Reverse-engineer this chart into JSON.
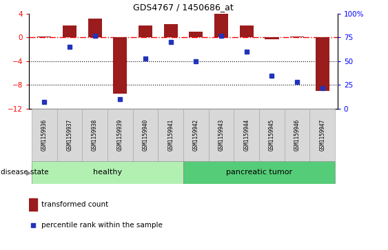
{
  "title": "GDS4767 / 1450686_at",
  "samples": [
    "GSM1159936",
    "GSM1159937",
    "GSM1159938",
    "GSM1159939",
    "GSM1159940",
    "GSM1159941",
    "GSM1159942",
    "GSM1159943",
    "GSM1159944",
    "GSM1159945",
    "GSM1159946",
    "GSM1159947"
  ],
  "transformed_count": [
    0.2,
    2.0,
    3.2,
    -9.5,
    2.0,
    2.2,
    1.0,
    4.0,
    2.0,
    -0.3,
    0.2,
    -9.0
  ],
  "percentile_rank": [
    7,
    65,
    77,
    10,
    53,
    70,
    50,
    77,
    60,
    35,
    28,
    22
  ],
  "bar_color": "#9b1c1c",
  "dot_color": "#2233bb",
  "ylim_left": [
    -12,
    4
  ],
  "ylim_right": [
    0,
    100
  ],
  "yticks_left": [
    4,
    0,
    -4,
    -8,
    -12
  ],
  "yticks_right": [
    100,
    75,
    50,
    25,
    0
  ],
  "dotted_lines": [
    -4,
    -8
  ],
  "groups": [
    {
      "label": "healthy",
      "indices": [
        0,
        1,
        2,
        3,
        4,
        5
      ],
      "color": "#b2f0b2"
    },
    {
      "label": "pancreatic tumor",
      "indices": [
        6,
        7,
        8,
        9,
        10,
        11
      ],
      "color": "#55cc77"
    }
  ],
  "disease_state_label": "disease state",
  "legend_items": [
    {
      "color": "#9b1c1c",
      "label": "transformed count"
    },
    {
      "color": "#2233bb",
      "label": "percentile rank within the sample"
    }
  ],
  "bar_width": 0.55
}
